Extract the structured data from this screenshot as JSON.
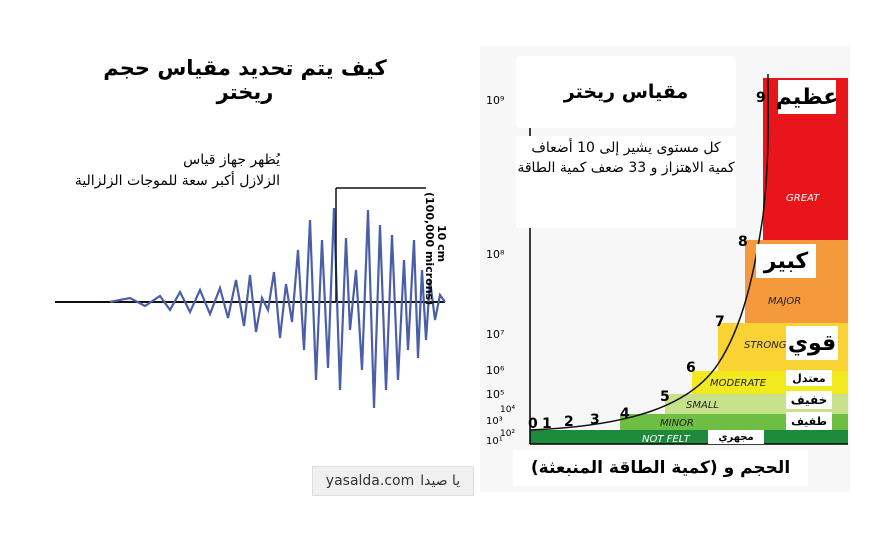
{
  "left": {
    "title": "كيف يتم تحديد مقياس حجم ريختر",
    "note_line1": "يُظهر جهاز قياس",
    "note_line2": "الزلازل أكبر سعة للموجات الزلزالية",
    "amplitude_label": "10 cm",
    "amplitude_sub": "(100,000 microns)"
  },
  "watermark": {
    "site": "yasalda.com",
    "arabic": "يا صيدا"
  },
  "chart": {
    "title": "مقياس ريختر",
    "description": "كل مستوى يشير إلى 10 أضعاف كمية الاهتزاز و 33 ضعف كمية الطاقة",
    "x_axis_label": "الحجم و (كمية الطاقة المنبعثة)",
    "y_ticks": [
      "10⁹",
      "10⁸",
      "10⁷",
      "10⁶",
      "10⁵",
      "10⁴",
      "10³",
      "10²",
      "10¹"
    ],
    "magnitudes": [
      "0",
      "1",
      "2",
      "3",
      "4",
      "5",
      "6",
      "7",
      "8",
      "9"
    ],
    "bands": [
      {
        "en": "NOT FELT",
        "ar": "مجهري",
        "color": "#1c8a3a"
      },
      {
        "en": "MINOR",
        "ar": "",
        "color": "#6fbe44"
      },
      {
        "en": "SMALL",
        "ar": "خفيف",
        "color": "#c7e28a"
      },
      {
        "en": "MODERATE",
        "ar": "معتدل",
        "color": "#f2ea1e"
      },
      {
        "en": "STRONG",
        "ar": "قوي",
        "color": "#f9d233"
      },
      {
        "en": "MAJOR",
        "ar": "كبير",
        "color": "#f49a3d"
      },
      {
        "en": "GREAT",
        "ar": "عظيم",
        "color": "#e8161b"
      }
    ],
    "extra_tag": "طفيف"
  }
}
